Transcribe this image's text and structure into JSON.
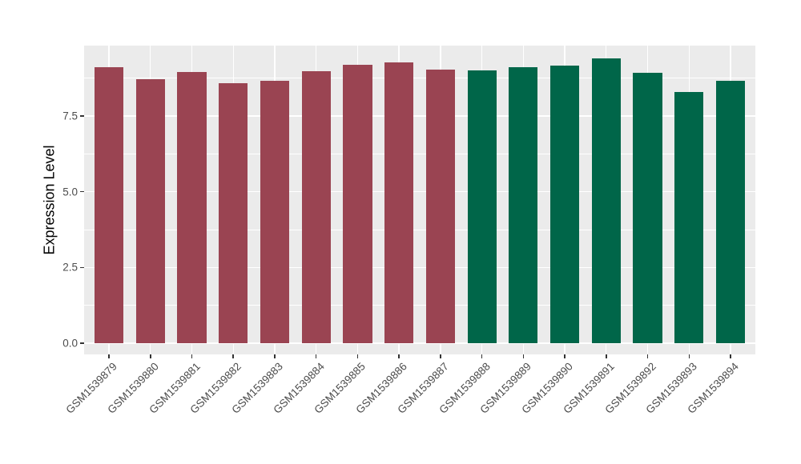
{
  "chart_data": {
    "type": "bar",
    "title": "",
    "xlabel": "",
    "ylabel": "Expression Level",
    "categories": [
      "GSM1539879",
      "GSM1539880",
      "GSM1539881",
      "GSM1539882",
      "GSM1539883",
      "GSM1539884",
      "GSM1539885",
      "GSM1539886",
      "GSM1539887",
      "GSM1539888",
      "GSM1539889",
      "GSM1539890",
      "GSM1539891",
      "GSM1539892",
      "GSM1539893",
      "GSM1539894"
    ],
    "values": [
      9.12,
      8.72,
      8.94,
      8.59,
      8.66,
      8.98,
      9.18,
      9.26,
      9.03,
      9.01,
      9.12,
      9.15,
      9.39,
      8.93,
      8.3,
      8.67
    ],
    "bar_color_keys": [
      "maroon",
      "maroon",
      "maroon",
      "maroon",
      "maroon",
      "maroon",
      "maroon",
      "maroon",
      "maroon",
      "green",
      "green",
      "green",
      "green",
      "green",
      "green",
      "green"
    ],
    "palette": {
      "maroon": "#9A4452",
      "green": "#006649"
    },
    "yticks": [
      0.0,
      2.5,
      5.0,
      7.5
    ],
    "ytick_labels": [
      "0.0",
      "2.5",
      "5.0",
      "7.5"
    ],
    "minor_ticks": [
      1.25,
      3.75,
      6.25,
      8.75
    ],
    "ylim": [
      0,
      9.85
    ],
    "x_tick_rotation_deg": 45,
    "grid": true,
    "legend": "none",
    "panel_bg": "#EBEBEB",
    "grid_color": "#FFFFFF",
    "axis_text_color": "#4D4D4D",
    "tick_mark_color": "#333333"
  }
}
